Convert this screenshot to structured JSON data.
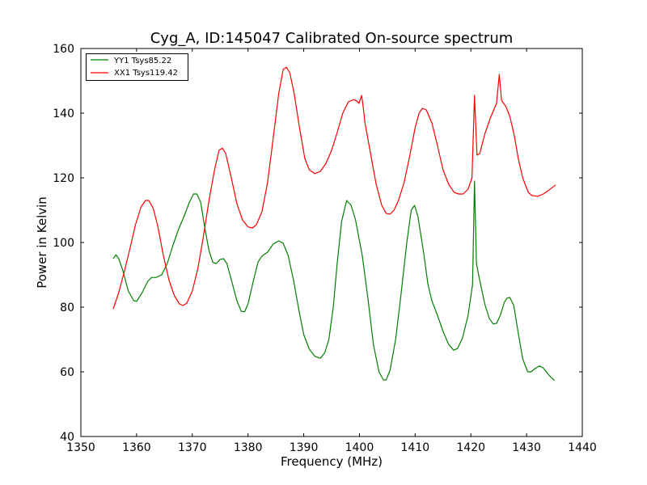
{
  "chart_data": {
    "type": "line",
    "title": "Cyg_A, ID:145047 Calibrated On-source spectrum",
    "xlabel": "Frequency (MHz)",
    "ylabel": "Power in Kelvin",
    "xlim": [
      1350,
      1440
    ],
    "ylim": [
      40,
      160
    ],
    "xticks": [
      1350,
      1360,
      1370,
      1380,
      1390,
      1400,
      1410,
      1420,
      1430,
      1440
    ],
    "yticks": [
      40,
      60,
      80,
      100,
      120,
      140,
      160
    ],
    "grid": false,
    "legend_position": "top-left",
    "series": [
      {
        "name": "YY1 Tsys85.22",
        "color": "#008000",
        "points": [
          [
            1355.8,
            95
          ],
          [
            1356.3,
            96.2
          ],
          [
            1356.8,
            95
          ],
          [
            1357.5,
            91.5
          ],
          [
            1358.5,
            85
          ],
          [
            1359.5,
            82
          ],
          [
            1360,
            81.8
          ],
          [
            1361,
            84.5
          ],
          [
            1362,
            88
          ],
          [
            1362.7,
            89.2
          ],
          [
            1363.5,
            89.2
          ],
          [
            1364.5,
            90
          ],
          [
            1365.5,
            93.5
          ],
          [
            1366.5,
            99
          ],
          [
            1367.5,
            104
          ],
          [
            1368.5,
            108
          ],
          [
            1369.5,
            112.5
          ],
          [
            1370.2,
            115
          ],
          [
            1370.8,
            115
          ],
          [
            1371.5,
            112.5
          ],
          [
            1372.2,
            105
          ],
          [
            1373,
            97.5
          ],
          [
            1373.7,
            93.8
          ],
          [
            1374.3,
            93.5
          ],
          [
            1375,
            94.8
          ],
          [
            1375.6,
            95
          ],
          [
            1376.2,
            93.5
          ],
          [
            1377,
            88.5
          ],
          [
            1378,
            82
          ],
          [
            1378.8,
            78.7
          ],
          [
            1379.4,
            78.6
          ],
          [
            1380,
            81
          ],
          [
            1381,
            88.5
          ],
          [
            1381.8,
            94
          ],
          [
            1382.5,
            95.8
          ],
          [
            1383.5,
            97
          ],
          [
            1384.5,
            99.5
          ],
          [
            1385.5,
            100.5
          ],
          [
            1386.3,
            99.8
          ],
          [
            1387.2,
            96
          ],
          [
            1388.2,
            88
          ],
          [
            1389.2,
            78.5
          ],
          [
            1390,
            71.5
          ],
          [
            1391,
            67
          ],
          [
            1392,
            64.8
          ],
          [
            1393,
            64.2
          ],
          [
            1393.8,
            66
          ],
          [
            1394.5,
            70
          ],
          [
            1395.3,
            80
          ],
          [
            1396,
            93.5
          ],
          [
            1396.8,
            106.5
          ],
          [
            1397.7,
            113
          ],
          [
            1398.5,
            111.5
          ],
          [
            1399.3,
            107
          ],
          [
            1400.5,
            96
          ],
          [
            1401.5,
            83
          ],
          [
            1402.5,
            68.5
          ],
          [
            1403.5,
            60
          ],
          [
            1404.3,
            57.5
          ],
          [
            1404.8,
            57.5
          ],
          [
            1405.5,
            60.5
          ],
          [
            1406.5,
            70
          ],
          [
            1407.5,
            84.5
          ],
          [
            1408.5,
            100
          ],
          [
            1409.3,
            110
          ],
          [
            1409.9,
            111.5
          ],
          [
            1410.5,
            108
          ],
          [
            1411.5,
            97
          ],
          [
            1412.3,
            87
          ],
          [
            1413,
            82
          ],
          [
            1414,
            77.5
          ],
          [
            1415,
            72.5
          ],
          [
            1416,
            68.5
          ],
          [
            1416.9,
            66.7
          ],
          [
            1417.6,
            67.2
          ],
          [
            1418.5,
            70.5
          ],
          [
            1419.5,
            77.5
          ],
          [
            1420.3,
            87
          ],
          [
            1420.65,
            119
          ],
          [
            1421,
            93.5
          ],
          [
            1421.5,
            89
          ],
          [
            1422.5,
            81
          ],
          [
            1423.3,
            76.5
          ],
          [
            1424,
            74.8
          ],
          [
            1424.6,
            75
          ],
          [
            1425.3,
            77.5
          ],
          [
            1426,
            81.5
          ],
          [
            1426.5,
            82.8
          ],
          [
            1427,
            83
          ],
          [
            1427.7,
            80.5
          ],
          [
            1428.5,
            72
          ],
          [
            1429.3,
            64
          ],
          [
            1430.2,
            60
          ],
          [
            1430.8,
            60
          ],
          [
            1431.5,
            61
          ],
          [
            1432.3,
            61.8
          ],
          [
            1433,
            61.2
          ],
          [
            1434,
            59
          ],
          [
            1435,
            57.3
          ]
        ]
      },
      {
        "name": "XX1 Tsys119.42",
        "color": "#ff0000",
        "points": [
          [
            1355.8,
            79.5
          ],
          [
            1356.8,
            84.5
          ],
          [
            1357.8,
            91
          ],
          [
            1358.8,
            98
          ],
          [
            1359.8,
            105.5
          ],
          [
            1360.8,
            111
          ],
          [
            1361.6,
            113
          ],
          [
            1362.2,
            113
          ],
          [
            1363,
            110.5
          ],
          [
            1363.8,
            105
          ],
          [
            1364.8,
            96
          ],
          [
            1365.8,
            88.5
          ],
          [
            1366.8,
            83.5
          ],
          [
            1367.7,
            81
          ],
          [
            1368.3,
            80.5
          ],
          [
            1369,
            81.2
          ],
          [
            1370,
            85
          ],
          [
            1371,
            92
          ],
          [
            1372,
            102
          ],
          [
            1373,
            113
          ],
          [
            1374,
            122.5
          ],
          [
            1374.8,
            128.5
          ],
          [
            1375.4,
            129.2
          ],
          [
            1376,
            127.5
          ],
          [
            1377,
            120
          ],
          [
            1378,
            112
          ],
          [
            1379,
            107
          ],
          [
            1380,
            104.8
          ],
          [
            1380.8,
            104.5
          ],
          [
            1381.5,
            105.5
          ],
          [
            1382.5,
            109.5
          ],
          [
            1383.5,
            118.5
          ],
          [
            1384.5,
            132
          ],
          [
            1385.5,
            146
          ],
          [
            1386.3,
            153.5
          ],
          [
            1386.9,
            154.2
          ],
          [
            1387.5,
            152.5
          ],
          [
            1388.3,
            146
          ],
          [
            1389.2,
            136
          ],
          [
            1390.2,
            126
          ],
          [
            1391,
            122.5
          ],
          [
            1392,
            121.3
          ],
          [
            1393,
            122
          ],
          [
            1394,
            124.5
          ],
          [
            1395,
            128.5
          ],
          [
            1396,
            134
          ],
          [
            1397,
            140
          ],
          [
            1398,
            143.5
          ],
          [
            1399,
            144.2
          ],
          [
            1399.5,
            143.8
          ],
          [
            1399.9,
            143
          ],
          [
            1400.4,
            145.5
          ],
          [
            1400.7,
            141.5
          ],
          [
            1401,
            137
          ],
          [
            1402,
            127.5
          ],
          [
            1403,
            118
          ],
          [
            1404,
            111.5
          ],
          [
            1404.8,
            109
          ],
          [
            1405.5,
            108.8
          ],
          [
            1406.2,
            110
          ],
          [
            1407,
            113
          ],
          [
            1408,
            118.5
          ],
          [
            1409,
            126.5
          ],
          [
            1410,
            135.5
          ],
          [
            1410.7,
            140
          ],
          [
            1411.3,
            141.5
          ],
          [
            1412,
            141
          ],
          [
            1413,
            137
          ],
          [
            1414,
            130
          ],
          [
            1415,
            122.5
          ],
          [
            1416,
            118
          ],
          [
            1417,
            115.5
          ],
          [
            1417.8,
            115
          ],
          [
            1418.6,
            115
          ],
          [
            1419.5,
            116.5
          ],
          [
            1420.2,
            120
          ],
          [
            1420.65,
            145.5
          ],
          [
            1421.1,
            127
          ],
          [
            1421.6,
            127.5
          ],
          [
            1422.5,
            133.5
          ],
          [
            1423.5,
            138.5
          ],
          [
            1424.6,
            143
          ],
          [
            1425.1,
            152
          ],
          [
            1425.5,
            144
          ],
          [
            1426.3,
            142
          ],
          [
            1427,
            139
          ],
          [
            1427.8,
            133
          ],
          [
            1428.5,
            126
          ],
          [
            1429.3,
            120
          ],
          [
            1430.3,
            115.5
          ],
          [
            1431,
            114.5
          ],
          [
            1432,
            114.3
          ],
          [
            1433,
            115
          ],
          [
            1434,
            116.2
          ],
          [
            1435.2,
            117.8
          ]
        ]
      }
    ]
  }
}
